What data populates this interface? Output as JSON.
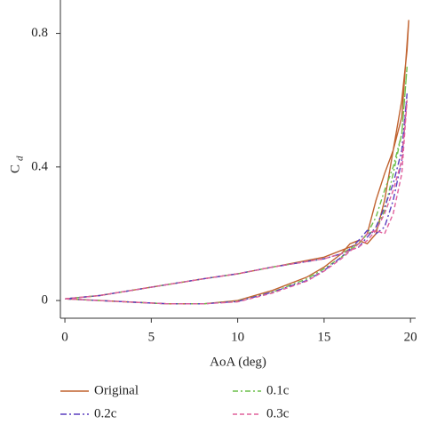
{
  "chart_data": {
    "type": "line",
    "xlabel": "AoA (deg)",
    "ylabel": "C",
    "ylabel_subscript": "d",
    "xlim": [
      -0.26,
      20.3
    ],
    "ylim": [
      -0.053,
      0.9
    ],
    "xticks": [
      0,
      5,
      10,
      15,
      20
    ],
    "yticks": [
      0,
      0.4,
      0.8
    ],
    "series": [
      {
        "name": "Original",
        "color": "#c0622f",
        "dash": "none",
        "x": [
          0,
          2,
          4,
          6,
          8,
          10,
          12,
          14,
          15,
          16,
          16.5,
          17,
          17.5,
          18,
          18.5,
          19,
          19.5,
          19.8,
          19.9,
          19.5,
          19,
          18.5,
          18,
          17.5,
          17,
          16,
          15,
          12,
          10,
          8,
          5,
          2,
          0
        ],
        "values": [
          0.005,
          0.0,
          -0.005,
          -0.01,
          -0.01,
          0.0,
          0.03,
          0.07,
          0.1,
          0.14,
          0.17,
          0.18,
          0.17,
          0.2,
          0.3,
          0.45,
          0.6,
          0.75,
          0.84,
          0.55,
          0.45,
          0.38,
          0.3,
          0.2,
          0.17,
          0.15,
          0.13,
          0.1,
          0.08,
          0.065,
          0.04,
          0.015,
          0.005
        ]
      },
      {
        "name": "0.1c",
        "color": "#6cbf4a",
        "dash": "6,3,2,3",
        "x": [
          0,
          2,
          4,
          6,
          8,
          10,
          12,
          14,
          15,
          16,
          17,
          17.5,
          18,
          18.5,
          19,
          19.5,
          19.8,
          19.5,
          19,
          18.5,
          18,
          17.5,
          17,
          16,
          15,
          12,
          10,
          8,
          5,
          2,
          0
        ],
        "values": [
          0.005,
          0.0,
          -0.005,
          -0.01,
          -0.01,
          -0.002,
          0.025,
          0.065,
          0.095,
          0.13,
          0.17,
          0.2,
          0.21,
          0.27,
          0.38,
          0.5,
          0.7,
          0.5,
          0.4,
          0.33,
          0.25,
          0.2,
          0.17,
          0.14,
          0.125,
          0.1,
          0.08,
          0.065,
          0.04,
          0.015,
          0.005
        ]
      },
      {
        "name": "0.2c",
        "color": "#5a3fbf",
        "dash": "7,3,2,3",
        "x": [
          0,
          2,
          4,
          6,
          8,
          10,
          12,
          14,
          15,
          16,
          17,
          17.5,
          18,
          18.5,
          19,
          19.5,
          19.8,
          19.5,
          19,
          18.5,
          18,
          17.5,
          17,
          16,
          15,
          12,
          10,
          8,
          5,
          2,
          0
        ],
        "values": [
          0.005,
          0.0,
          -0.005,
          -0.01,
          -0.01,
          -0.003,
          0.025,
          0.06,
          0.09,
          0.13,
          0.18,
          0.21,
          0.2,
          0.22,
          0.3,
          0.42,
          0.62,
          0.45,
          0.35,
          0.28,
          0.22,
          0.19,
          0.16,
          0.14,
          0.125,
          0.1,
          0.08,
          0.065,
          0.04,
          0.015,
          0.005
        ]
      },
      {
        "name": "0.3c",
        "color": "#e0609c",
        "dash": "5,3",
        "x": [
          0,
          2,
          4,
          6,
          8,
          10,
          12,
          14,
          15,
          16,
          17,
          17.5,
          18,
          18.5,
          19,
          19.5,
          19.8,
          19.5,
          19,
          18.5,
          18,
          17.5,
          17,
          16,
          15,
          12,
          10,
          8,
          5,
          2,
          0
        ],
        "values": [
          0.005,
          0.0,
          -0.005,
          -0.01,
          -0.01,
          -0.004,
          0.022,
          0.058,
          0.088,
          0.125,
          0.17,
          0.2,
          0.21,
          0.2,
          0.26,
          0.38,
          0.6,
          0.42,
          0.33,
          0.26,
          0.21,
          0.18,
          0.16,
          0.14,
          0.125,
          0.1,
          0.08,
          0.065,
          0.04,
          0.015,
          0.005
        ]
      }
    ]
  }
}
